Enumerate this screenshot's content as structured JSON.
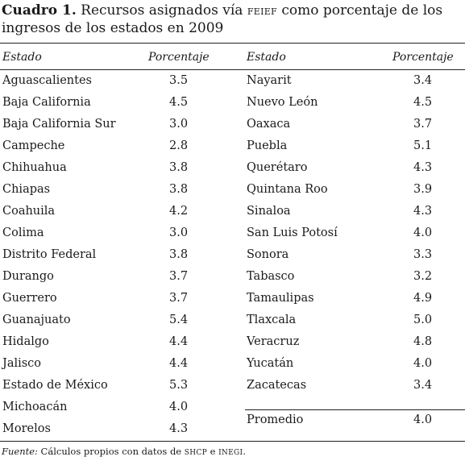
{
  "caption": {
    "label": "Cuadro 1.",
    "text_a": " Recursos asignados vía ",
    "smallcaps": "FEIEF",
    "text_b": " como porcentaje de los ingresos de los estados en 2009"
  },
  "headers": {
    "state": "Estado",
    "percent": "Porcentaje"
  },
  "left_rows": [
    {
      "state": "Aguascalientes",
      "value": "3.5"
    },
    {
      "state": "Baja California",
      "value": "4.5"
    },
    {
      "state": "Baja California Sur",
      "value": "3.0"
    },
    {
      "state": "Campeche",
      "value": "2.8"
    },
    {
      "state": "Chihuahua",
      "value": "3.8"
    },
    {
      "state": "Chiapas",
      "value": "3.8"
    },
    {
      "state": "Coahuila",
      "value": "4.2"
    },
    {
      "state": "Colima",
      "value": "3.0"
    },
    {
      "state": "Distrito Federal",
      "value": "3.8"
    },
    {
      "state": "Durango",
      "value": "3.7"
    },
    {
      "state": "Guerrero",
      "value": "3.7"
    },
    {
      "state": "Guanajuato",
      "value": "5.4"
    },
    {
      "state": "Hidalgo",
      "value": "4.4"
    },
    {
      "state": "Jalisco",
      "value": "4.4"
    },
    {
      "state": "Estado de México",
      "value": "5.3"
    },
    {
      "state": "Michoacán",
      "value": "4.0"
    },
    {
      "state": "Morelos",
      "value": "4.3"
    }
  ],
  "right_rows": [
    {
      "state": "Nayarit",
      "value": "3.4"
    },
    {
      "state": "Nuevo León",
      "value": "4.5"
    },
    {
      "state": "Oaxaca",
      "value": "3.7"
    },
    {
      "state": "Puebla",
      "value": "5.1"
    },
    {
      "state": "Querétaro",
      "value": "4.3"
    },
    {
      "state": "Quintana Roo",
      "value": "3.9"
    },
    {
      "state": "Sinaloa",
      "value": "4.3"
    },
    {
      "state": "San Luis Potosí",
      "value": "4.0"
    },
    {
      "state": "Sonora",
      "value": "3.3"
    },
    {
      "state": "Tabasco",
      "value": "3.2"
    },
    {
      "state": "Tamaulipas",
      "value": "4.9"
    },
    {
      "state": "Tlaxcala",
      "value": "5.0"
    },
    {
      "state": "Veracruz",
      "value": "4.8"
    },
    {
      "state": "Yucatán",
      "value": "4.0"
    },
    {
      "state": "Zacatecas",
      "value": "3.4"
    }
  ],
  "average": {
    "label": "Promedio",
    "value": "4.0"
  },
  "source": {
    "label": "Fuente:",
    "text_a": " Cálculos propios con datos de ",
    "shcp": "SHCP",
    "text_b": " e ",
    "inegi": "INEGI",
    "text_c": "."
  }
}
